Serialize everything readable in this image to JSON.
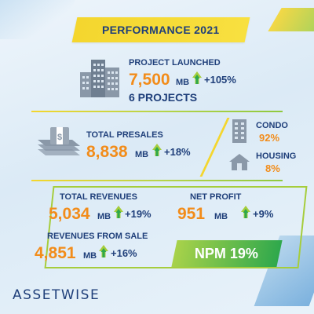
{
  "title": "PERFORMANCE 2021",
  "project_launched": {
    "label": "PROJECT LAUNCHED",
    "value": "7,500",
    "unit": "MB",
    "growth": "+105%",
    "projects": "6 PROJECTS"
  },
  "total_presales": {
    "label": "TOTAL PRESALES",
    "value": "8,838",
    "unit": "MB",
    "growth": "+18%"
  },
  "segments": {
    "condo": {
      "label": "CONDO",
      "value": "92%"
    },
    "housing": {
      "label": "HOUSING",
      "value": "8%"
    }
  },
  "total_revenues": {
    "label": "TOTAL REVENUES",
    "value": "5,034",
    "unit": "MB",
    "growth": "+19%"
  },
  "net_profit": {
    "label": "NET PROFIT",
    "value": "951",
    "unit": "MB",
    "growth": "+9%"
  },
  "revenues_from_sale": {
    "label": "REVENUES FROM SALE",
    "value": "4,851",
    "unit": "MB",
    "growth": "+16%"
  },
  "npm": "NPM 19%",
  "logo": "ASSETWISE",
  "colors": {
    "navy": "#1f3f7a",
    "orange": "#f28c1a",
    "yellow": "#f4d62e",
    "green": "#2ea84c",
    "lime": "#a6cd3c",
    "icon_grey": "#8a98a8"
  },
  "icons": [
    "buildings-icon",
    "money-stack-icon",
    "condo-building-icon",
    "house-icon",
    "growth-arrow-icon"
  ]
}
